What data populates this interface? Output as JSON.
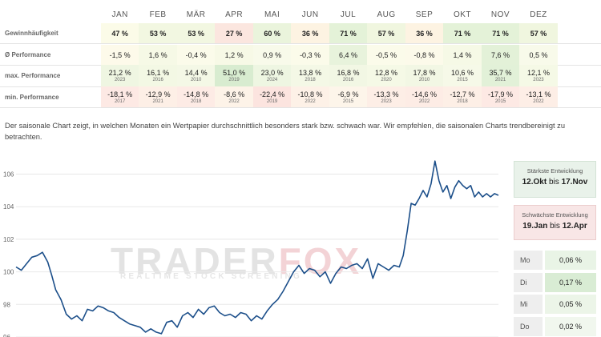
{
  "table": {
    "months": [
      "JAN",
      "FEB",
      "MÄR",
      "APR",
      "MAI",
      "JUN",
      "JUL",
      "AUG",
      "SEP",
      "OKT",
      "NOV",
      "DEZ"
    ],
    "rows": [
      {
        "label": "Gewinnhäufigkeit",
        "values": [
          "47 %",
          "53 %",
          "53 %",
          "27 %",
          "60 %",
          "36 %",
          "71 %",
          "57 %",
          "36 %",
          "71 %",
          "71 %",
          "57 %"
        ],
        "colors": [
          "#fbfbe8",
          "#f2f7e1",
          "#f2f7e1",
          "#fbe6df",
          "#eaf4dc",
          "#fdf3e2",
          "#e4f2d8",
          "#f0f6df",
          "#fdf3e2",
          "#e4f2d8",
          "#e4f2d8",
          "#f0f6df"
        ]
      },
      {
        "label": "Ø Performance",
        "values": [
          "-1,5 %",
          "1,6 %",
          "-0,4 %",
          "1,2 %",
          "0,9 %",
          "-0,3 %",
          "6,4 %",
          "-0,5 %",
          "-0,8 %",
          "1,4 %",
          "7,6 %",
          "0,5 %"
        ],
        "colors": [
          "#fdfaea",
          "#f6f9e6",
          "#fbfbea",
          "#f7f9e6",
          "#f8faea",
          "#fbfbea",
          "#e8f3dc",
          "#fbfbea",
          "#fcfaea",
          "#f6f9e6",
          "#e3f1d8",
          "#f8faea"
        ]
      },
      {
        "label": "max. Performance",
        "values": [
          "21,2 %",
          "16,1 %",
          "14,4 %",
          "51,0 %",
          "23,0 %",
          "13,8 %",
          "16,8 %",
          "12,8 %",
          "17,8 %",
          "10,6 %",
          "35,7 %",
          "12,1 %"
        ],
        "years": [
          "2023",
          "2016",
          "2010",
          "2019",
          "2024",
          "2018",
          "2016",
          "2020",
          "2010",
          "2015",
          "2021",
          "2023"
        ],
        "colors": [
          "#eff6e2",
          "#f3f8e4",
          "#f4f8e6",
          "#d8ecd0",
          "#eef6e2",
          "#f4f8e6",
          "#f2f7e4",
          "#f5f9e6",
          "#f2f7e4",
          "#f6f9e8",
          "#e2f1d8",
          "#f5f9e6"
        ]
      },
      {
        "label": "min. Performance",
        "values": [
          "-18,1 %",
          "-12,9 %",
          "-14,8 %",
          "-8,6 %",
          "-22,4 %",
          "-10,8 %",
          "-6,9 %",
          "-13,3 %",
          "-14,6 %",
          "-12,7 %",
          "-17,9 %",
          "-13,1 %"
        ],
        "years": [
          "2017",
          "2021",
          "2018",
          "2022",
          "2019",
          "2022",
          "2015",
          "2023",
          "2022",
          "2018",
          "2015",
          "2022"
        ],
        "colors": [
          "#fde9e4",
          "#fdefe6",
          "#fdebe5",
          "#fdf3e8",
          "#fce4df",
          "#fdf1e7",
          "#fdf5ea",
          "#fdeee6",
          "#fdece5",
          "#fdefe6",
          "#fde9e4",
          "#fdeee6"
        ]
      }
    ]
  },
  "description": "Der saisonale Chart zeigt, in welchen Monaten ein Wertpapier durchschnittlich besonders stark bzw. schwach war. Wir empfehlen, die saisonalen Charts trendbereinigt zu betrachten.",
  "watermark": {
    "brand_a": "TRADER",
    "brand_b": "FOX",
    "tagline": "REALTIME STOCK SCREENING"
  },
  "panel": {
    "best": {
      "title": "Stärkste Entwicklung",
      "from": "12.Okt",
      "connector": "bis",
      "to": "17.Nov"
    },
    "worst": {
      "title": "Schwächste Entwicklung",
      "from": "19.Jan",
      "connector": "bis",
      "to": "12.Apr"
    },
    "weekdays": [
      {
        "day": "Mo",
        "value": "0,06 %",
        "color": "#e9f4e6"
      },
      {
        "day": "Di",
        "value": "0,17 %",
        "color": "#d9ecd4"
      },
      {
        "day": "Mi",
        "value": "0,05 %",
        "color": "#ecf5e8"
      },
      {
        "day": "Do",
        "value": "0,02 %",
        "color": "#f1f7ee"
      }
    ]
  },
  "chart_data": {
    "type": "line",
    "x_unit": "day of year",
    "ylim": [
      96,
      107.5
    ],
    "xlim": [
      0,
      365
    ],
    "yticks": [
      96,
      98,
      100,
      102,
      104,
      106
    ],
    "grid": true,
    "line_color": "#1c4f8a",
    "points": [
      [
        0,
        100.3
      ],
      [
        4,
        100.1
      ],
      [
        8,
        100.5
      ],
      [
        12,
        100.9
      ],
      [
        16,
        101.0
      ],
      [
        20,
        101.2
      ],
      [
        24,
        100.6
      ],
      [
        27,
        99.8
      ],
      [
        30,
        98.9
      ],
      [
        34,
        98.3
      ],
      [
        38,
        97.4
      ],
      [
        42,
        97.1
      ],
      [
        46,
        97.3
      ],
      [
        50,
        97.0
      ],
      [
        54,
        97.7
      ],
      [
        58,
        97.6
      ],
      [
        62,
        97.9
      ],
      [
        66,
        97.8
      ],
      [
        70,
        97.6
      ],
      [
        74,
        97.5
      ],
      [
        78,
        97.2
      ],
      [
        82,
        97.0
      ],
      [
        86,
        96.8
      ],
      [
        90,
        96.7
      ],
      [
        94,
        96.6
      ],
      [
        98,
        96.3
      ],
      [
        102,
        96.5
      ],
      [
        106,
        96.3
      ],
      [
        110,
        96.2
      ],
      [
        114,
        96.9
      ],
      [
        118,
        97.0
      ],
      [
        122,
        96.6
      ],
      [
        126,
        97.3
      ],
      [
        130,
        97.5
      ],
      [
        134,
        97.2
      ],
      [
        138,
        97.7
      ],
      [
        142,
        97.4
      ],
      [
        146,
        97.8
      ],
      [
        150,
        97.9
      ],
      [
        154,
        97.5
      ],
      [
        158,
        97.3
      ],
      [
        162,
        97.4
      ],
      [
        166,
        97.2
      ],
      [
        170,
        97.5
      ],
      [
        174,
        97.4
      ],
      [
        178,
        97.0
      ],
      [
        182,
        97.3
      ],
      [
        186,
        97.1
      ],
      [
        190,
        97.6
      ],
      [
        194,
        98.0
      ],
      [
        198,
        98.3
      ],
      [
        202,
        98.8
      ],
      [
        206,
        99.4
      ],
      [
        210,
        100.0
      ],
      [
        214,
        100.4
      ],
      [
        218,
        99.9
      ],
      [
        222,
        100.2
      ],
      [
        226,
        100.1
      ],
      [
        230,
        99.7
      ],
      [
        234,
        100.0
      ],
      [
        238,
        99.3
      ],
      [
        242,
        99.9
      ],
      [
        246,
        100.3
      ],
      [
        250,
        100.2
      ],
      [
        254,
        100.4
      ],
      [
        258,
        100.5
      ],
      [
        262,
        100.2
      ],
      [
        266,
        100.8
      ],
      [
        270,
        99.6
      ],
      [
        274,
        100.5
      ],
      [
        278,
        100.3
      ],
      [
        282,
        100.1
      ],
      [
        286,
        100.4
      ],
      [
        290,
        100.3
      ],
      [
        293,
        101.0
      ],
      [
        296,
        102.5
      ],
      [
        299,
        104.2
      ],
      [
        302,
        104.1
      ],
      [
        305,
        104.5
      ],
      [
        308,
        105.0
      ],
      [
        311,
        104.6
      ],
      [
        314,
        105.4
      ],
      [
        317,
        106.8
      ],
      [
        320,
        105.6
      ],
      [
        323,
        104.9
      ],
      [
        326,
        105.3
      ],
      [
        329,
        104.5
      ],
      [
        332,
        105.2
      ],
      [
        335,
        105.6
      ],
      [
        338,
        105.3
      ],
      [
        341,
        105.1
      ],
      [
        344,
        105.3
      ],
      [
        347,
        104.6
      ],
      [
        350,
        104.9
      ],
      [
        353,
        104.6
      ],
      [
        356,
        104.8
      ],
      [
        359,
        104.6
      ],
      [
        362,
        104.8
      ],
      [
        365,
        104.7
      ]
    ]
  }
}
